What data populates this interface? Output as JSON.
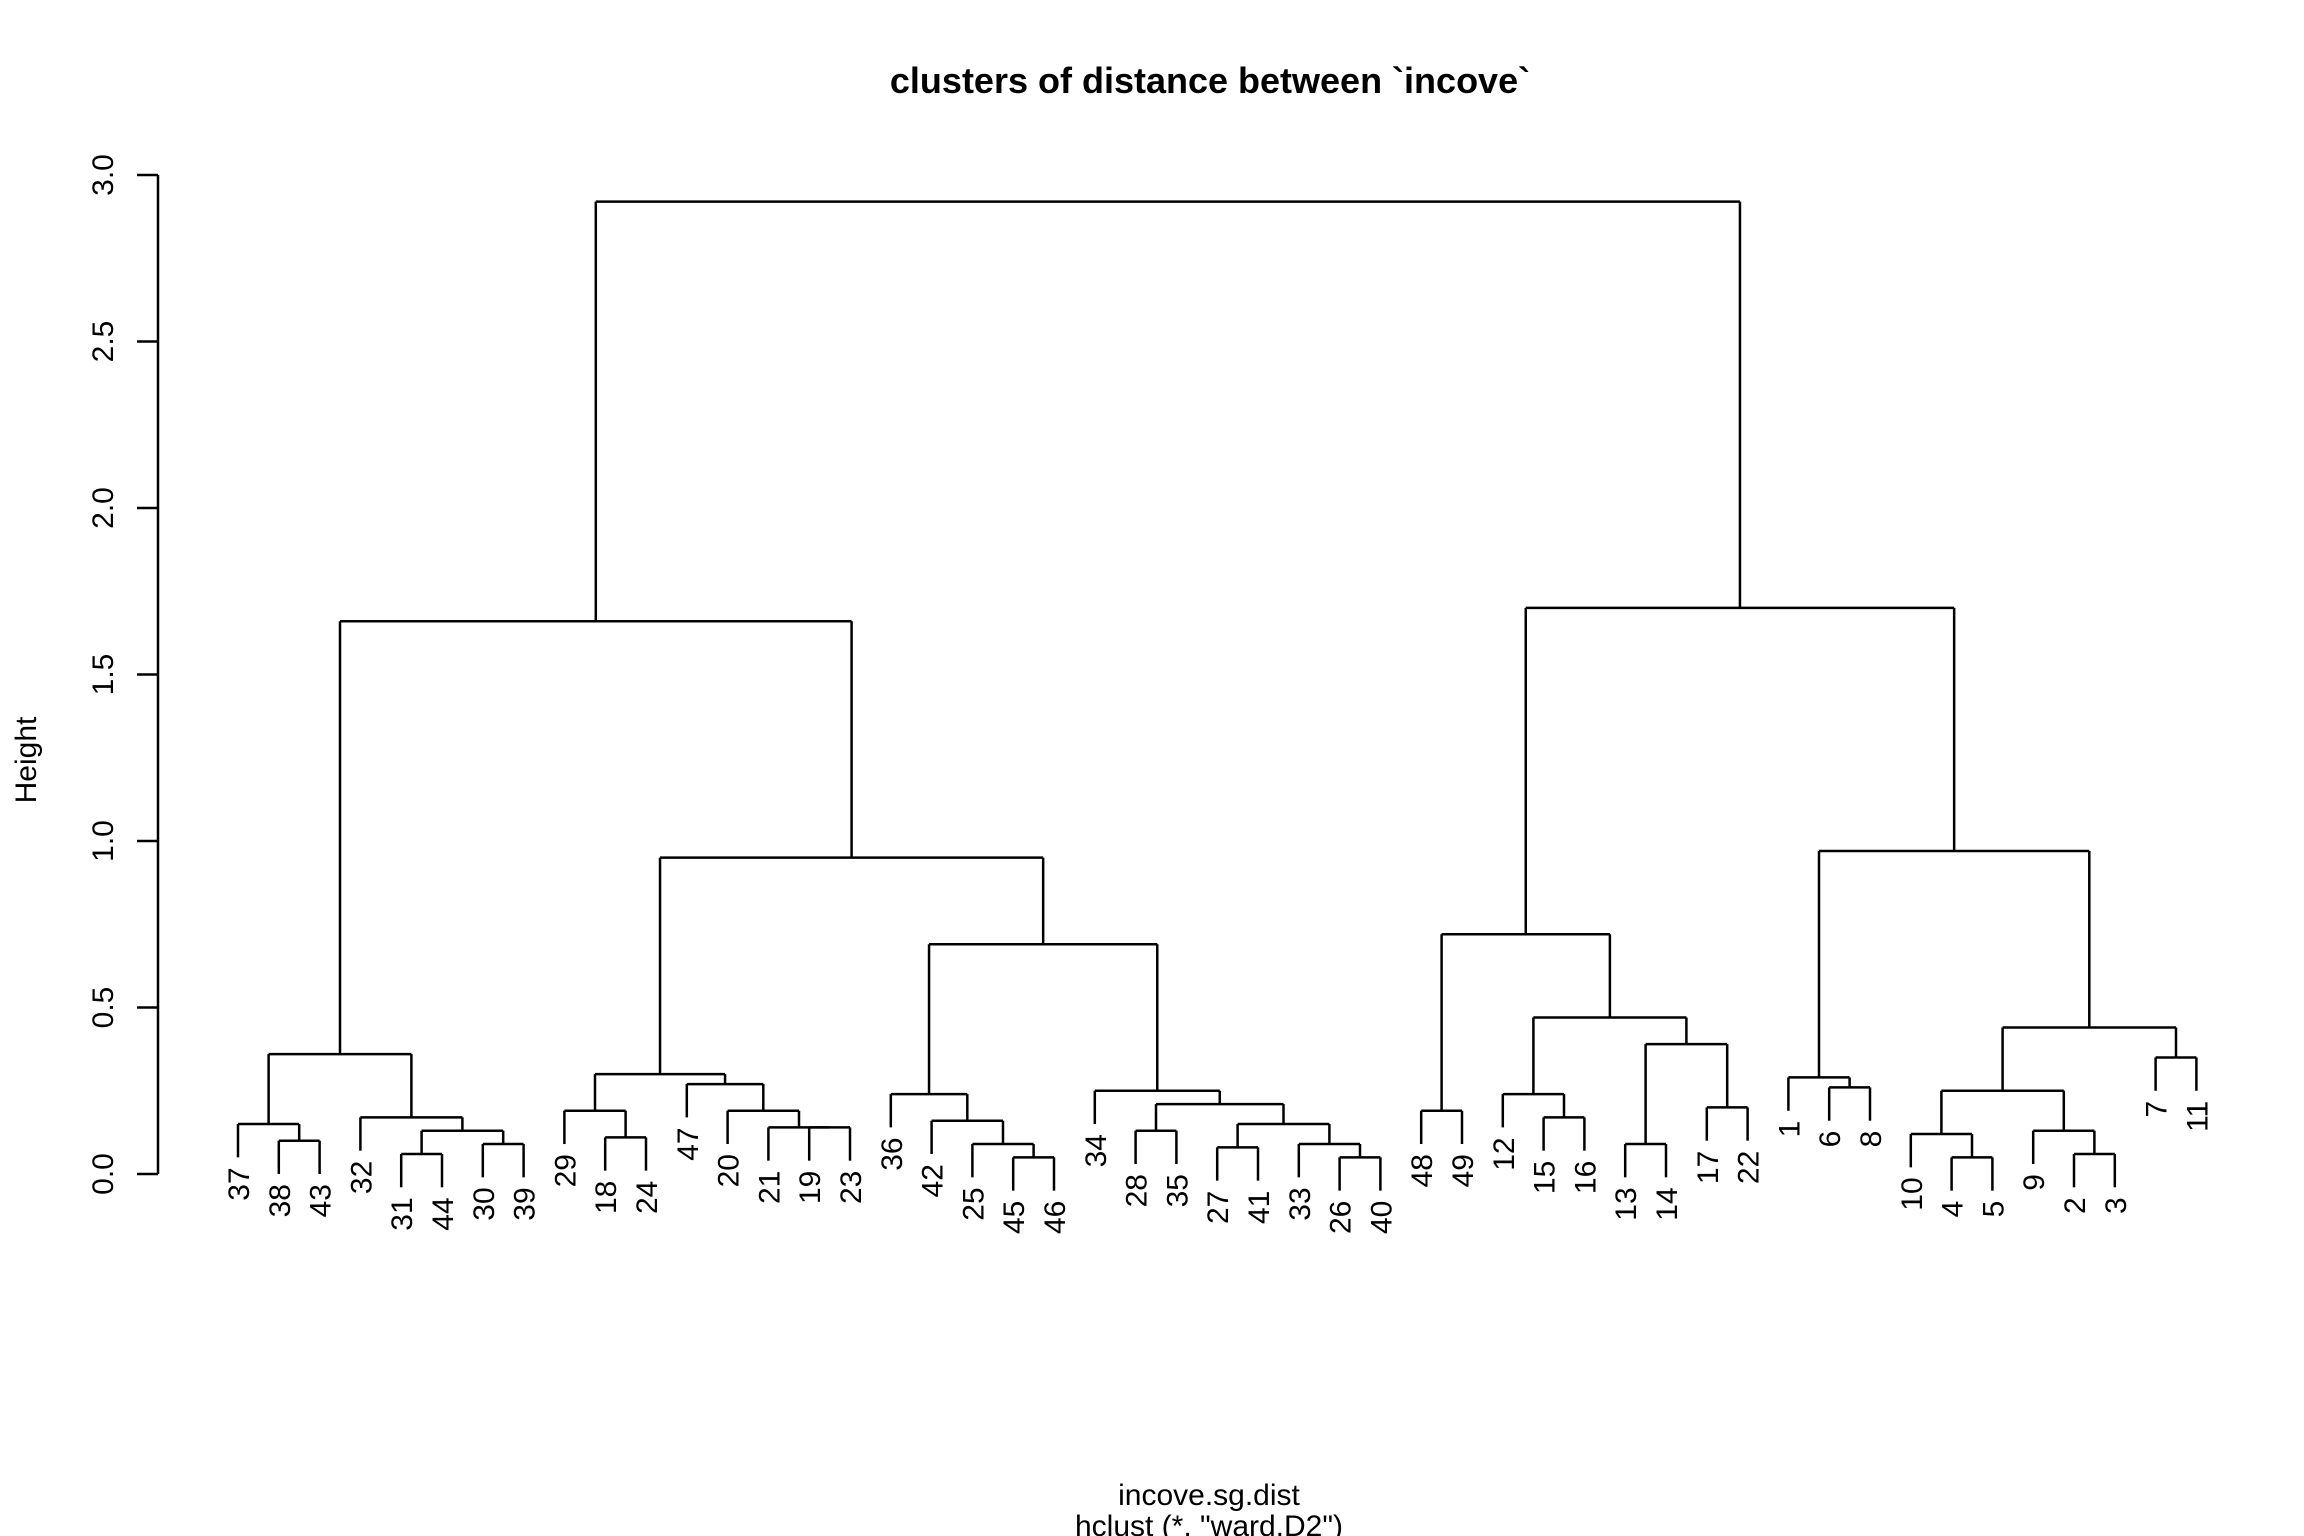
{
  "chart_data": {
    "type": "dendrogram",
    "title": "clusters of distance between `incove`",
    "ylabel": "Height",
    "xlabel": "incove.sg.dist",
    "sublabel": "hclust (*, \"ward.D2\")",
    "ylim": [
      0,
      3.0
    ],
    "yticks": [
      "0.0",
      "0.5",
      "1.0",
      "1.5",
      "2.0",
      "2.5",
      "3.0"
    ],
    "leaves": [
      "37",
      "38",
      "43",
      "32",
      "31",
      "44",
      "30",
      "39",
      "29",
      "18",
      "24",
      "47",
      "20",
      "21",
      "19",
      "23",
      "36",
      "42",
      "25",
      "45",
      "46",
      "34",
      "28",
      "35",
      "27",
      "41",
      "33",
      "26",
      "40",
      "48",
      "49",
      "12",
      "15",
      "16",
      "13",
      "14",
      "17",
      "22",
      "1",
      "6",
      "8",
      "10",
      "4",
      "5",
      "9",
      "2",
      "3",
      "7",
      "11"
    ],
    "merges": [
      {
        "a": "38",
        "b": "43",
        "height": 0.1
      },
      {
        "a": "37",
        "b": "m1",
        "height": 0.15
      },
      {
        "a": "30",
        "b": "39",
        "height": 0.09
      },
      {
        "a": "31",
        "b": "44",
        "height": 0.06
      },
      {
        "a": "m4",
        "b": "m3",
        "height": 0.13
      },
      {
        "a": "32",
        "b": "m5",
        "height": 0.17
      },
      {
        "a": "m2",
        "b": "m6",
        "height": 0.36
      },
      {
        "a": "18",
        "b": "24",
        "height": 0.11
      },
      {
        "a": "29",
        "b": "m8",
        "height": 0.19
      },
      {
        "a": "19",
        "b": "23",
        "height": 0.14
      },
      {
        "a": "21",
        "b": "m10",
        "height": 0.14
      },
      {
        "a": "20",
        "b": "m11",
        "height": 0.19
      },
      {
        "a": "47",
        "b": "m12",
        "height": 0.27
      },
      {
        "a": "m9",
        "b": "m13",
        "height": 0.3
      },
      {
        "a": "45",
        "b": "46",
        "height": 0.05
      },
      {
        "a": "25",
        "b": "m15",
        "height": 0.09
      },
      {
        "a": "42",
        "b": "m16",
        "height": 0.16
      },
      {
        "a": "36",
        "b": "m17",
        "height": 0.24
      },
      {
        "a": "28",
        "b": "35",
        "height": 0.13
      },
      {
        "a": "27",
        "b": "41",
        "height": 0.08
      },
      {
        "a": "26",
        "b": "40",
        "height": 0.05
      },
      {
        "a": "33",
        "b": "m21",
        "height": 0.09
      },
      {
        "a": "m20",
        "b": "m22",
        "height": 0.15
      },
      {
        "a": "m19",
        "b": "m23",
        "height": 0.21
      },
      {
        "a": "34",
        "b": "m24",
        "height": 0.25
      },
      {
        "a": "m18",
        "b": "m25",
        "height": 0.69
      },
      {
        "a": "m14",
        "b": "m26",
        "height": 0.95
      },
      {
        "a": "m7",
        "b": "m27",
        "height": 1.66
      },
      {
        "a": "48",
        "b": "49",
        "height": 0.19
      },
      {
        "a": "15",
        "b": "16",
        "height": 0.17
      },
      {
        "a": "12",
        "b": "m30",
        "height": 0.24
      },
      {
        "a": "13",
        "b": "14",
        "height": 0.09
      },
      {
        "a": "17",
        "b": "22",
        "height": 0.2
      },
      {
        "a": "m32",
        "b": "m33",
        "height": 0.39
      },
      {
        "a": "m31",
        "b": "m34",
        "height": 0.47
      },
      {
        "a": "m29",
        "b": "m35",
        "height": 0.72
      },
      {
        "a": "6",
        "b": "8",
        "height": 0.26
      },
      {
        "a": "1",
        "b": "m37",
        "height": 0.29
      },
      {
        "a": "4",
        "b": "5",
        "height": 0.05
      },
      {
        "a": "10",
        "b": "m39",
        "height": 0.12
      },
      {
        "a": "2",
        "b": "3",
        "height": 0.06
      },
      {
        "a": "9",
        "b": "m41",
        "height": 0.13
      },
      {
        "a": "m40",
        "b": "m42",
        "height": 0.25
      },
      {
        "a": "7",
        "b": "11",
        "height": 0.35
      },
      {
        "a": "m43",
        "b": "m44",
        "height": 0.44
      },
      {
        "a": "m38",
        "b": "m45",
        "height": 0.97
      },
      {
        "a": "m36",
        "b": "m46",
        "height": 1.7
      },
      {
        "a": "m28",
        "b": "m47",
        "height": 2.92
      }
    ]
  }
}
